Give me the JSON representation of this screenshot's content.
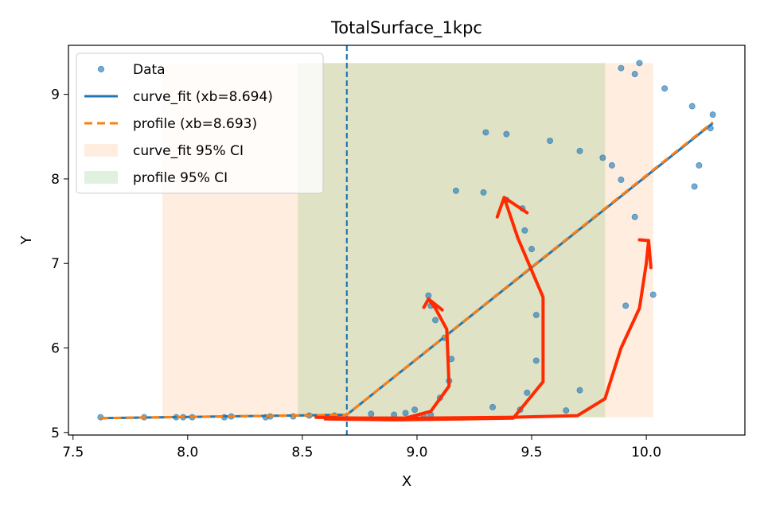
{
  "chart_data": {
    "type": "scatter",
    "title": "TotalSurface_1kpc",
    "xlabel": "X",
    "ylabel": "Y",
    "xlim": [
      7.48,
      10.43
    ],
    "ylim": [
      4.97,
      9.58
    ],
    "xticks": [
      7.5,
      8.0,
      8.5,
      9.0,
      9.5,
      10.0
    ],
    "xtick_labels": [
      "7.5",
      "8.0",
      "8.5",
      "9.0",
      "9.5",
      "10.0"
    ],
    "yticks": [
      5,
      6,
      7,
      8,
      9
    ],
    "ytick_labels": [
      "5",
      "6",
      "7",
      "8",
      "9"
    ],
    "grid": false,
    "legend_position": "upper-left",
    "legend": [
      {
        "label": "Data",
        "kind": "marker",
        "color": "#1f77b4"
      },
      {
        "label": "curve_fit (xb=8.694)",
        "kind": "solid-line",
        "color": "#1f77b4"
      },
      {
        "label": "profile (xb=8.693)",
        "kind": "dashed-line",
        "color": "#ff7f0e"
      },
      {
        "label": "curve_fit 95% CI",
        "kind": "patch",
        "color": "#ff7f0e"
      },
      {
        "label": "profile 95% CI",
        "kind": "patch",
        "color": "#2ca02c"
      }
    ],
    "breakpoint_x": 8.694,
    "colors": {
      "data": "#1f77b4",
      "curve_fit": "#1f77b4",
      "profile": "#ff7f0e",
      "curve_fit_ci": "#ff7f0e",
      "profile_ci": "#2ca02c",
      "annotation": "#ff2a00"
    },
    "curve_fit_ci": {
      "x0": 7.89,
      "x1": 10.03,
      "y0": 5.18,
      "y1": 9.37
    },
    "profile_ci": {
      "x0": 8.48,
      "x1": 9.82,
      "y0": 5.18,
      "y1": 9.37
    },
    "fit_line": [
      [
        7.62,
        5.17
      ],
      [
        8.694,
        5.21
      ],
      [
        10.29,
        8.66
      ]
    ],
    "profile_line": [
      [
        7.62,
        5.17
      ],
      [
        8.693,
        5.21
      ],
      [
        10.29,
        8.67
      ]
    ],
    "points": [
      [
        7.62,
        5.18
      ],
      [
        7.81,
        5.18
      ],
      [
        7.95,
        5.18
      ],
      [
        7.98,
        5.18
      ],
      [
        8.02,
        5.18
      ],
      [
        8.16,
        5.18
      ],
      [
        8.19,
        5.19
      ],
      [
        8.34,
        5.18
      ],
      [
        8.36,
        5.19
      ],
      [
        8.46,
        5.19
      ],
      [
        8.53,
        5.2
      ],
      [
        8.64,
        5.2
      ],
      [
        8.8,
        5.22
      ],
      [
        8.9,
        5.21
      ],
      [
        8.95,
        5.23
      ],
      [
        8.99,
        5.27
      ],
      [
        9.03,
        5.19
      ],
      [
        9.06,
        5.21
      ],
      [
        9.05,
        6.62
      ],
      [
        9.06,
        6.5
      ],
      [
        9.08,
        6.33
      ],
      [
        9.1,
        5.41
      ],
      [
        9.12,
        6.12
      ],
      [
        9.14,
        5.61
      ],
      [
        9.15,
        5.87
      ],
      [
        9.17,
        7.86
      ],
      [
        9.29,
        7.84
      ],
      [
        9.3,
        8.55
      ],
      [
        9.33,
        5.3
      ],
      [
        9.39,
        8.53
      ],
      [
        9.39,
        7.75
      ],
      [
        9.45,
        5.27
      ],
      [
        9.46,
        7.65
      ],
      [
        9.47,
        7.39
      ],
      [
        9.5,
        7.17
      ],
      [
        9.48,
        5.47
      ],
      [
        9.52,
        6.39
      ],
      [
        9.52,
        5.85
      ],
      [
        9.58,
        8.45
      ],
      [
        9.65,
        5.26
      ],
      [
        9.71,
        5.5
      ],
      [
        9.71,
        8.33
      ],
      [
        9.81,
        8.25
      ],
      [
        9.85,
        8.16
      ],
      [
        9.89,
        7.99
      ],
      [
        9.89,
        9.31
      ],
      [
        9.91,
        6.5
      ],
      [
        9.95,
        9.24
      ],
      [
        9.95,
        7.55
      ],
      [
        9.97,
        9.37
      ],
      [
        10.03,
        6.63
      ],
      [
        10.08,
        9.07
      ],
      [
        10.2,
        8.86
      ],
      [
        10.21,
        7.91
      ],
      [
        10.23,
        8.16
      ],
      [
        10.28,
        8.6
      ],
      [
        10.29,
        8.76
      ]
    ],
    "annotations": [
      {
        "label": "arrow-1",
        "path": [
          [
            8.56,
            5.18
          ],
          [
            8.75,
            5.17
          ],
          [
            8.95,
            5.17
          ],
          [
            9.06,
            5.25
          ],
          [
            9.14,
            5.55
          ],
          [
            9.13,
            6.22
          ],
          [
            9.08,
            6.47
          ],
          [
            9.05,
            6.58
          ]
        ],
        "head": [
          [
            9.03,
            6.48
          ],
          [
            9.05,
            6.58
          ],
          [
            9.11,
            6.45
          ]
        ]
      },
      {
        "label": "arrow-2",
        "path": [
          [
            8.6,
            5.16
          ],
          [
            8.9,
            5.15
          ],
          [
            9.2,
            5.16
          ],
          [
            9.42,
            5.17
          ],
          [
            9.55,
            5.6
          ],
          [
            9.55,
            6.6
          ],
          [
            9.44,
            7.3
          ],
          [
            9.38,
            7.78
          ]
        ],
        "head": [
          [
            9.35,
            7.55
          ],
          [
            9.38,
            7.78
          ],
          [
            9.48,
            7.6
          ]
        ]
      },
      {
        "label": "arrow-3",
        "path": [
          [
            8.7,
            5.17
          ],
          [
            9.0,
            5.17
          ],
          [
            9.4,
            5.18
          ],
          [
            9.7,
            5.2
          ],
          [
            9.82,
            5.4
          ],
          [
            9.89,
            6.0
          ],
          [
            9.97,
            6.47
          ],
          [
            10.0,
            7.0
          ],
          [
            10.01,
            7.27
          ]
        ],
        "head": [
          [
            9.97,
            7.28
          ],
          [
            10.01,
            7.27
          ],
          [
            10.02,
            6.95
          ]
        ]
      }
    ]
  }
}
